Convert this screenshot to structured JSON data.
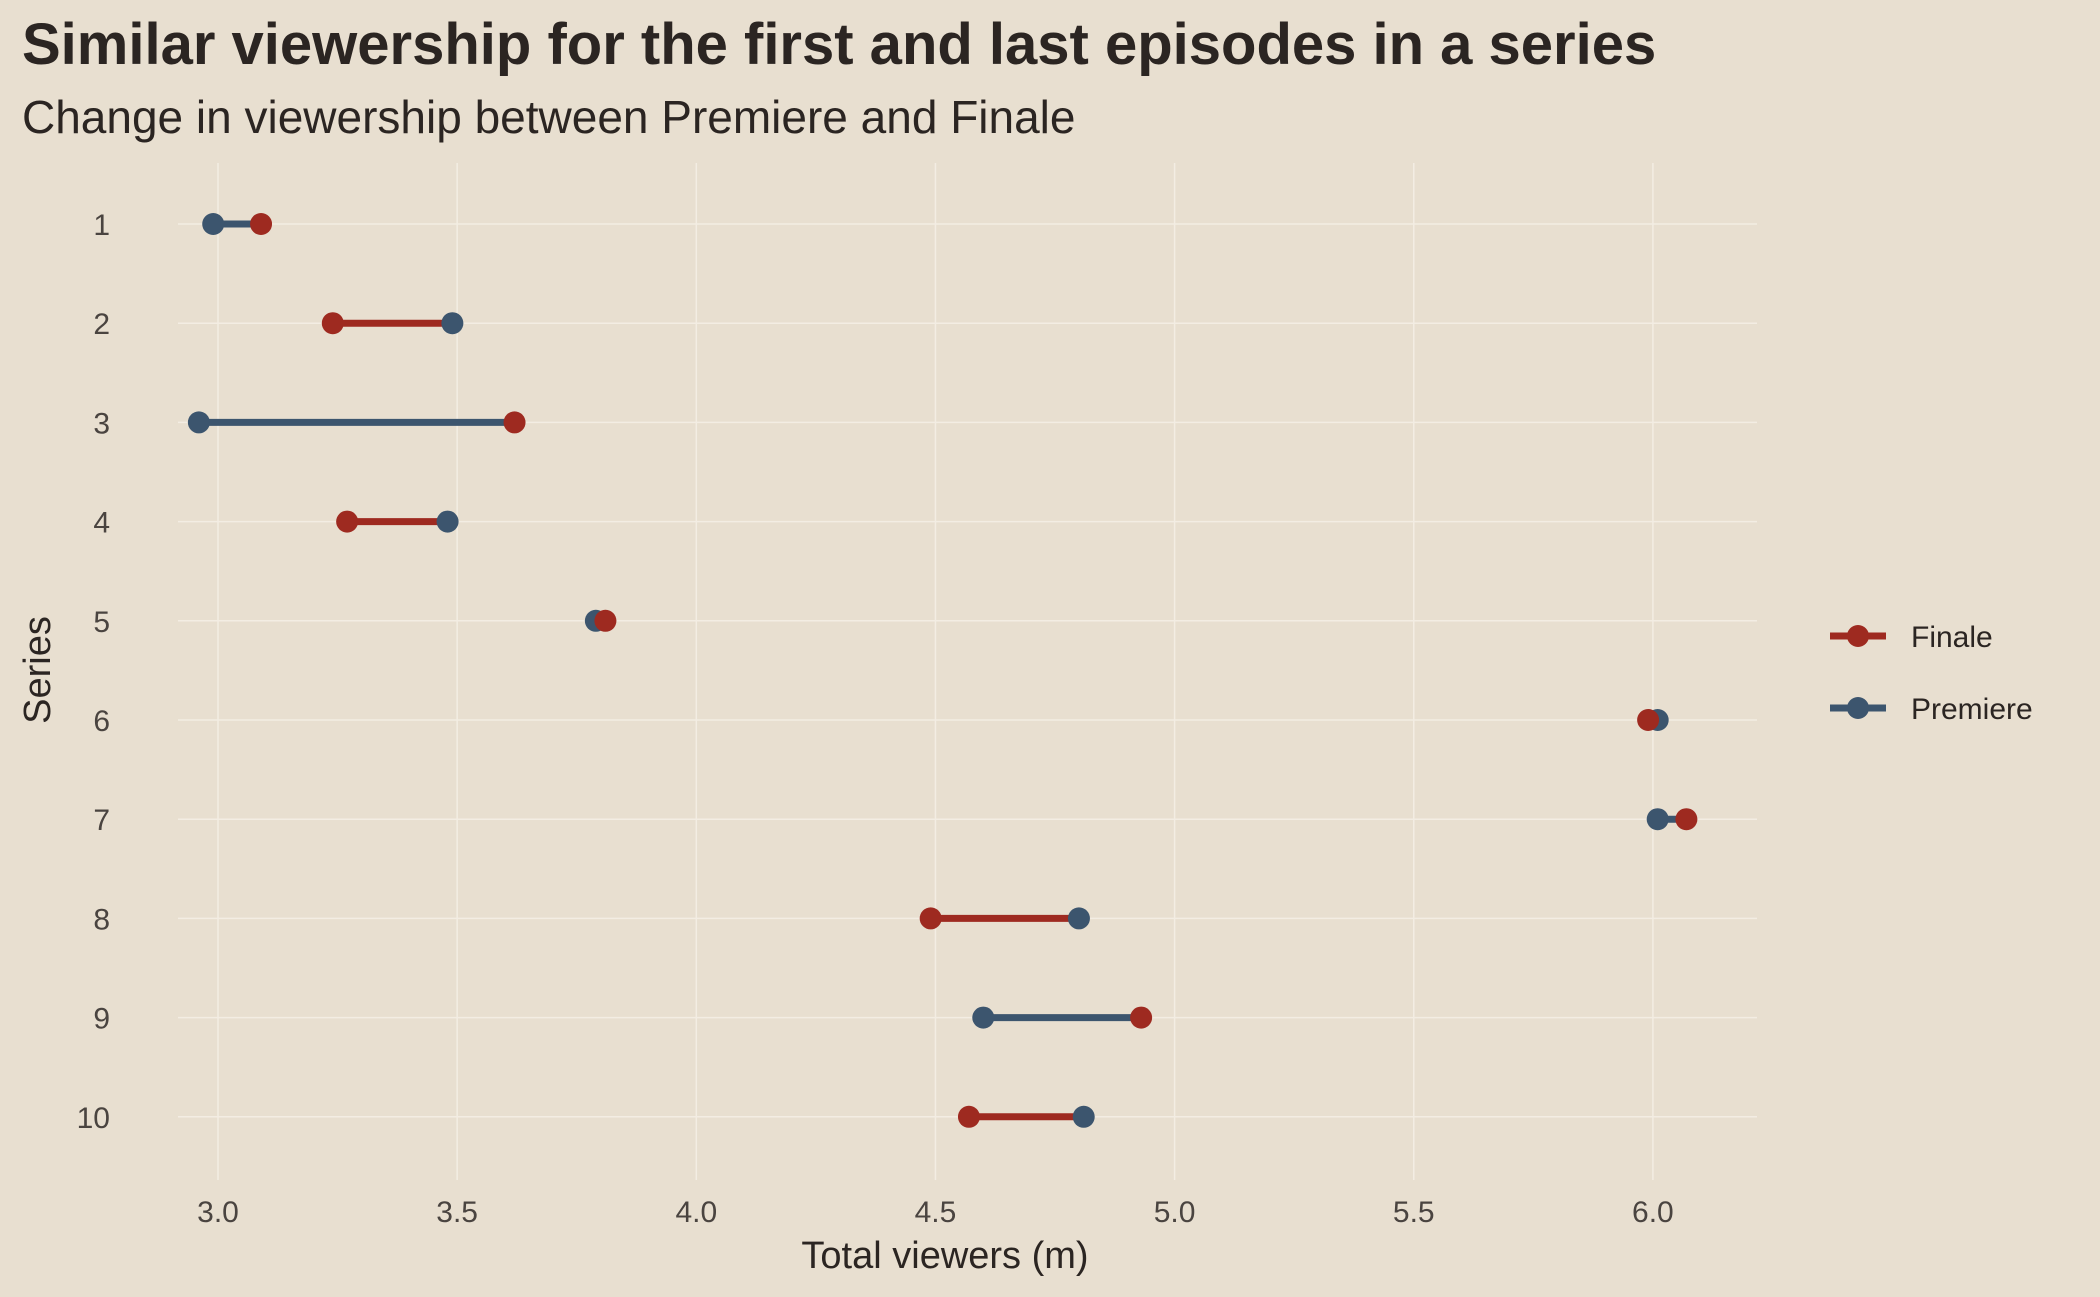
{
  "chart_data": {
    "type": "dumbbell",
    "title": "Similar viewership for the first and last episodes in a series",
    "subtitle": "Change in viewership between Premiere and Finale",
    "xlabel": "Total viewers (m)",
    "ylabel": "Series",
    "xlim": [
      2.78,
      6.22
    ],
    "x_ticks": [
      "3.0",
      "3.5",
      "4.0",
      "4.5",
      "5.0",
      "5.5",
      "6.0"
    ],
    "categories": [
      "1",
      "2",
      "3",
      "4",
      "5",
      "6",
      "7",
      "8",
      "9",
      "10"
    ],
    "series": [
      {
        "name": "Finale",
        "color": "#9e2a20",
        "values": [
          3.09,
          3.24,
          3.62,
          3.27,
          3.81,
          5.99,
          6.07,
          4.49,
          4.93,
          4.57
        ]
      },
      {
        "name": "Premiere",
        "color": "#3c556e",
        "values": [
          2.99,
          3.49,
          2.96,
          3.48,
          3.79,
          6.01,
          6.01,
          4.8,
          4.6,
          4.81
        ]
      }
    ],
    "grid": true,
    "legend": "right"
  }
}
